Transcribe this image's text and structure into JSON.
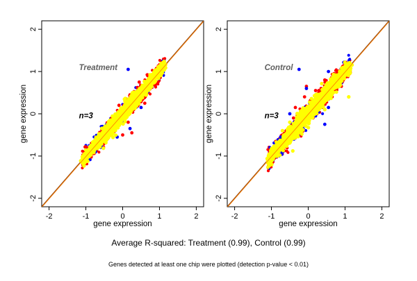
{
  "colors": {
    "background": "#ffffff",
    "panel_background": "#ffffff",
    "axis": "#000000",
    "identity_line_a": "#8b4513",
    "identity_line_b": "#ff7f00",
    "point_fill": "#ffff00",
    "point_up": "#ff0000",
    "point_down": "#0000ff",
    "label_gray": "#606060"
  },
  "captions": {
    "summary": "Average R-squared: Treatment (0.99), Control (0.99)",
    "footnote": "Genes detected at least one chip were plotted (detection p-value < 0.01)"
  },
  "chart_data": [
    {
      "type": "scatter",
      "title": "",
      "panel_label": "Treatment",
      "n_label": "n=3",
      "xlabel": "gene expression",
      "ylabel": "gene expression",
      "xlim": [
        -2.2,
        2.2
      ],
      "ylim": [
        -2.2,
        2.2
      ],
      "xticks": [
        -2,
        -1,
        0,
        1,
        2
      ],
      "yticks": [
        -2,
        -1,
        0,
        1,
        2
      ],
      "identity_line": true,
      "cloud": {
        "center_x": 0.0,
        "center_y": 0.0,
        "x_range": [
          -1.1,
          1.15
        ],
        "spread": 0.07,
        "r_squared": 0.99
      },
      "series": [
        {
          "color": "red",
          "values": [
            [
              -0.95,
              -0.88
            ],
            [
              -0.6,
              -0.45
            ],
            [
              -0.3,
              -0.1
            ],
            [
              0.1,
              0.35
            ],
            [
              0.4,
              0.62
            ],
            [
              0.7,
              0.9
            ],
            [
              -0.5,
              -0.7
            ],
            [
              -0.2,
              -0.4
            ],
            [
              0.15,
              -0.2
            ],
            [
              0.3,
              0.1
            ],
            [
              0.55,
              0.35
            ],
            [
              0.85,
              0.7
            ],
            [
              -0.1,
              0.2
            ],
            [
              0.2,
              0.45
            ],
            [
              0.45,
              0.75
            ],
            [
              0.9,
              1.0
            ],
            [
              1.05,
              1.02
            ],
            [
              1.1,
              1.08
            ],
            [
              -0.65,
              -0.55
            ],
            [
              0.6,
              0.25
            ],
            [
              0.0,
              -0.5
            ],
            [
              -0.4,
              -0.25
            ],
            [
              0.25,
              -0.45
            ]
          ]
        },
        {
          "color": "blue",
          "values": [
            [
              0.15,
              1.05
            ],
            [
              -0.55,
              -0.3
            ],
            [
              0.2,
              -0.35
            ],
            [
              -0.15,
              -0.55
            ],
            [
              0.35,
              0.2
            ],
            [
              0.5,
              0.15
            ],
            [
              0.95,
              1.0
            ]
          ]
        }
      ]
    },
    {
      "type": "scatter",
      "title": "",
      "panel_label": "Control",
      "n_label": "n=3",
      "xlabel": "gene expression",
      "ylabel": "gene expression",
      "xlim": [
        -2.2,
        2.2
      ],
      "ylim": [
        -2.2,
        2.2
      ],
      "xticks": [
        -2,
        -1,
        0,
        1,
        2
      ],
      "yticks": [
        -2,
        -1,
        0,
        1,
        2
      ],
      "identity_line": true,
      "cloud": {
        "center_x": 0.0,
        "center_y": 0.0,
        "x_range": [
          -1.1,
          1.15
        ],
        "spread": 0.08,
        "r_squared": 0.99
      },
      "series": [
        {
          "color": "red",
          "values": [
            [
              -0.9,
              -0.8
            ],
            [
              -0.6,
              -0.4
            ],
            [
              -0.3,
              -0.05
            ],
            [
              0.05,
              0.3
            ],
            [
              0.35,
              0.6
            ],
            [
              0.7,
              0.95
            ],
            [
              -0.4,
              -0.1
            ],
            [
              -0.1,
              0.4
            ],
            [
              0.2,
              0.55
            ],
            [
              0.45,
              0.8
            ],
            [
              0.8,
              1.0
            ],
            [
              1.05,
              1.05
            ],
            [
              -0.6,
              -0.75
            ],
            [
              -0.2,
              -0.35
            ],
            [
              0.15,
              -0.05
            ],
            [
              0.4,
              0.15
            ],
            [
              0.65,
              0.4
            ],
            [
              0.9,
              0.65
            ],
            [
              -0.35,
              0.15
            ],
            [
              0.25,
              0.2
            ],
            [
              -0.05,
              0.65
            ],
            [
              0.55,
              0.35
            ]
          ]
        },
        {
          "color": "blue",
          "values": [
            [
              -0.25,
              1.05
            ],
            [
              0.55,
              1.0
            ],
            [
              -0.05,
              0.6
            ],
            [
              0.3,
              0.35
            ],
            [
              -0.75,
              -0.55
            ],
            [
              -0.4,
              -0.55
            ],
            [
              0.2,
              -0.05
            ],
            [
              0.55,
              0.15
            ],
            [
              0.45,
              -0.25
            ],
            [
              -0.15,
              -0.3
            ],
            [
              0.9,
              0.75
            ],
            [
              -0.5,
              0.0
            ]
          ]
        },
        {
          "color": "yellow",
          "values": [
            [
              1.1,
              0.4
            ],
            [
              0.45,
              0.1
            ],
            [
              -0.7,
              -0.4
            ],
            [
              -0.5,
              -0.2
            ]
          ]
        }
      ]
    }
  ]
}
